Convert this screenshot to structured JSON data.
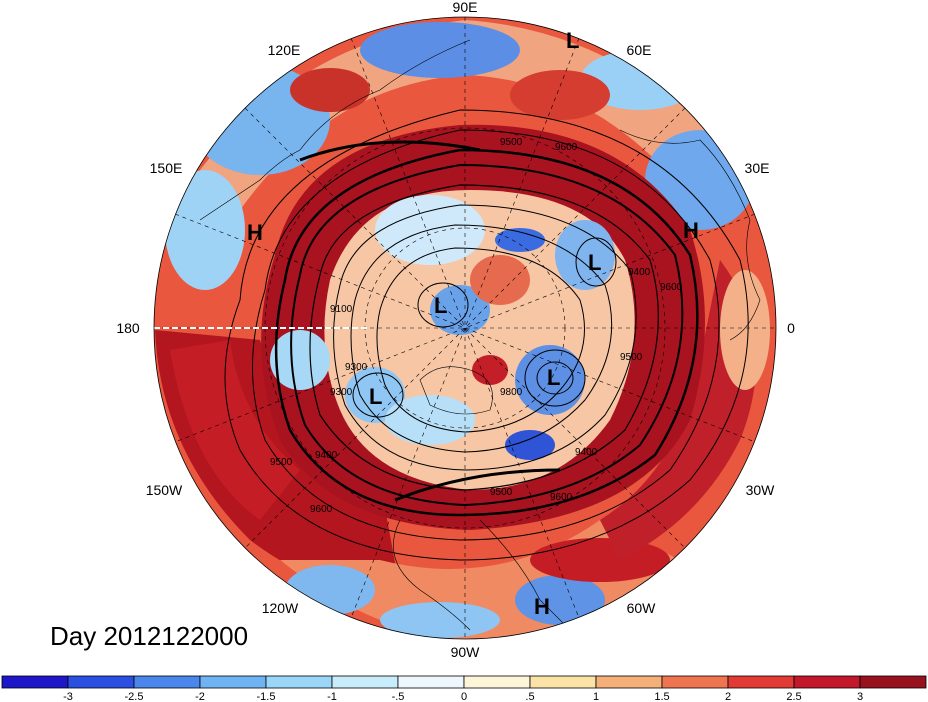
{
  "title": "Day 2012122000",
  "longitude_labels": {
    "top": "90E",
    "upper_left": "120E",
    "upper_right": "60E",
    "mid_left": "150E",
    "mid_right": "30E",
    "left": "180",
    "right": "0",
    "lower_left": "150W",
    "lower_right": "30W",
    "bottom_left": "120W",
    "bottom_right": "60W",
    "bottom": "90W"
  },
  "pressure_systems": {
    "high": "H",
    "low": "L"
  },
  "contour_labels": [
    "9500",
    "9600",
    "9400",
    "9300",
    "9100",
    "9500",
    "9600",
    "9800",
    "9400",
    "9500",
    "9600",
    "9400",
    "9500",
    "9600",
    "9300"
  ],
  "colorbar": {
    "labels": [
      "-3",
      "-2.5",
      "-2",
      "-1.5",
      "-1",
      "-.5",
      "0",
      ".5",
      "1",
      "1.5",
      "2",
      "2.5",
      "3"
    ],
    "colors": [
      "#1d17c9",
      "#2b4fe0",
      "#4a86eb",
      "#6fb3f2",
      "#99d6f8",
      "#c9ecfb",
      "#eef8fc",
      "#fdf5d8",
      "#fbe2a6",
      "#f5b07a",
      "#ef7450",
      "#e23b36",
      "#c3172b",
      "#98111f"
    ]
  },
  "palette": {
    "deep_red": "#a8131f",
    "red": "#d7302c",
    "orange": "#f08a5a",
    "cream": "#fbeccb",
    "light_blue": "#a9dbf6",
    "blue": "#4b86e6",
    "deep_blue": "#2338c9"
  }
}
